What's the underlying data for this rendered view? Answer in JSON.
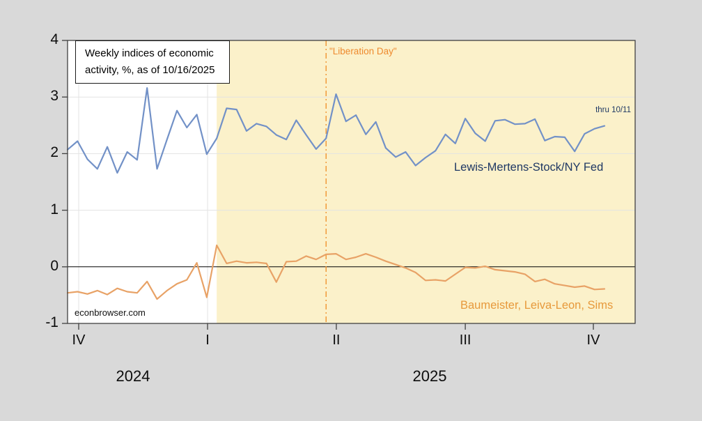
{
  "title_box": {
    "line1": "Weekly indices of economic",
    "line2": "activity, %, as of 10/16/2025"
  },
  "annotations": {
    "liberation_day": "\"Liberation Day\"",
    "thru": "thru 10/11",
    "series1_label": "Lewis-Mertens-Stock/NY Fed",
    "series2_label": "Baumeister, Leiva-Leon, Sims",
    "watermark": "econbrowser.com"
  },
  "colors": {
    "page_background": "#d9d9d9",
    "plot_background": "#ffffff",
    "highlight_band": "#fbf1ca",
    "series1_line": "#7291c7",
    "series2_line": "#e8a266",
    "series1_label": "#1f3864",
    "series2_label": "#e7993b",
    "vline": "#f0932f",
    "zero_line": "#000000",
    "gridline": "#e3e3e3",
    "frame": "#404040"
  },
  "chart_data": {
    "type": "line",
    "title": "Weekly indices of economic activity, %, as of 10/16/2025",
    "x_unit": "week",
    "x_axis": {
      "tick_labels": [
        "IV",
        "I",
        "II",
        "III",
        "IV"
      ],
      "year_labels": [
        "2024",
        "2025"
      ]
    },
    "y_axis": {
      "ticks": [
        4,
        3,
        2,
        1,
        0,
        -1
      ],
      "range": [
        -1,
        4
      ]
    },
    "grid": {
      "horizontal_at": [
        1,
        2,
        3
      ],
      "zero_line": true
    },
    "highlight_band": {
      "start_week": 15,
      "end": "right-edge",
      "meaning": "2025 shaded region"
    },
    "vline": {
      "week": 26,
      "label": "\"Liberation Day\"",
      "style": "dashed"
    },
    "series": [
      {
        "name": "Lewis-Mertens-Stock/NY Fed",
        "color": "#7291c7",
        "values": [
          2.07,
          2.22,
          1.9,
          1.73,
          2.12,
          1.66,
          2.03,
          1.89,
          3.16,
          1.73,
          2.25,
          2.76,
          2.46,
          2.69,
          1.99,
          2.27,
          2.8,
          2.78,
          2.4,
          2.53,
          2.48,
          2.33,
          2.25,
          2.59,
          2.33,
          2.08,
          2.27,
          3.05,
          2.57,
          2.68,
          2.34,
          2.56,
          2.1,
          1.94,
          2.03,
          1.79,
          1.93,
          2.05,
          2.34,
          2.18,
          2.62,
          2.36,
          2.22,
          2.58,
          2.6,
          2.52,
          2.53,
          2.61,
          2.23,
          2.3,
          2.29,
          2.04,
          2.35,
          2.44,
          2.49
        ]
      },
      {
        "name": "Baumeister, Leiva-Leon, Sims",
        "color": "#e8a266",
        "values": [
          -0.46,
          -0.44,
          -0.48,
          -0.42,
          -0.49,
          -0.38,
          -0.44,
          -0.46,
          -0.26,
          -0.57,
          -0.42,
          -0.3,
          -0.23,
          0.07,
          -0.54,
          0.38,
          0.06,
          0.1,
          0.07,
          0.08,
          0.06,
          -0.27,
          0.09,
          0.1,
          0.19,
          0.13,
          0.22,
          0.23,
          0.13,
          0.17,
          0.23,
          0.17,
          0.1,
          0.04,
          -0.02,
          -0.1,
          -0.24,
          -0.23,
          -0.25,
          -0.13,
          -0.01,
          -0.02,
          0.01,
          -0.05,
          -0.07,
          -0.09,
          -0.13,
          -0.26,
          -0.22,
          -0.3,
          -0.33,
          -0.36,
          -0.34,
          -0.4,
          -0.39
        ]
      }
    ]
  }
}
